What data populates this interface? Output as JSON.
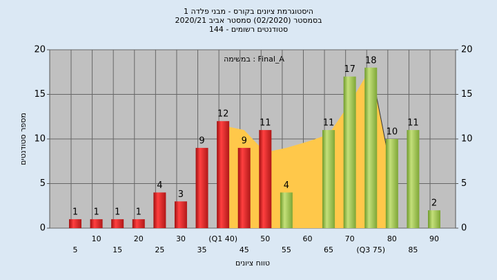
{
  "chart_data": {
    "type": "bar",
    "title": "היסטוגרמת ציונים בקורס - מבני פלדה 1",
    "subtitle": [
      "בסמסטר  (02/2020)  סמסטר אביב 2020/21",
      "סטודנטים רשומים - 144"
    ],
    "annotation": "במשימה : Final_A",
    "y_label": "מספר סטודנטים",
    "x_label": "טווח ציונים",
    "categories": [
      "5",
      "10",
      "15",
      "20",
      "25",
      "30",
      "35",
      "(Q1 40)",
      "45",
      "50",
      "55",
      "60",
      "65",
      "70",
      "(Q3 75)",
      "80",
      "85",
      "90"
    ],
    "values": [
      1,
      1,
      1,
      1,
      4,
      3,
      9,
      12,
      9,
      11,
      4,
      null,
      11,
      17,
      18,
      10,
      11,
      2
    ],
    "colors": [
      "red",
      "red",
      "red",
      "red",
      "red",
      "red",
      "red",
      "red",
      "red",
      "red",
      "green",
      "green",
      "green",
      "green",
      "green",
      "green",
      "green",
      "green"
    ],
    "area": {
      "color": "#ffc84a",
      "values": [
        null,
        null,
        null,
        null,
        null,
        null,
        null,
        11.5,
        11,
        8.5,
        9,
        9.7,
        10.5,
        14,
        18,
        6,
        null,
        null
      ]
    },
    "ylim": [
      0,
      20
    ],
    "yticks": [
      0,
      5,
      10,
      15,
      20
    ],
    "y2lim": [
      0,
      20
    ],
    "y2ticks": [
      0,
      5,
      10,
      15,
      20
    ],
    "grid": true
  }
}
